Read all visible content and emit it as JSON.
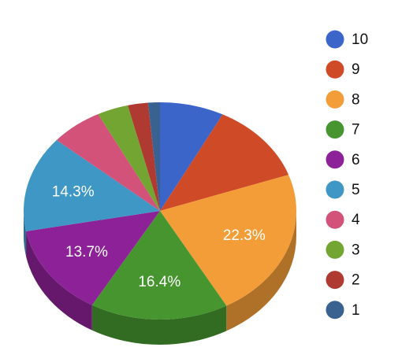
{
  "chart_data": {
    "type": "pie3d",
    "categories": [
      "10",
      "9",
      "8",
      "7",
      "6",
      "5",
      "4",
      "3",
      "2",
      "1"
    ],
    "values": [
      7.6,
      12.0,
      22.3,
      16.4,
      13.7,
      14.3,
      6.2,
      3.7,
      2.4,
      1.4
    ],
    "value_labels": [
      null,
      null,
      "22.3%",
      "16.4%",
      "13.7%",
      "14.3%",
      null,
      null,
      null,
      null
    ],
    "colors": [
      "#3b65c8",
      "#cf4a26",
      "#f39d38",
      "#46952f",
      "#8d2298",
      "#3e97c4",
      "#d3527a",
      "#72a532",
      "#ae3a32",
      "#3a6290"
    ],
    "legend": "right"
  }
}
